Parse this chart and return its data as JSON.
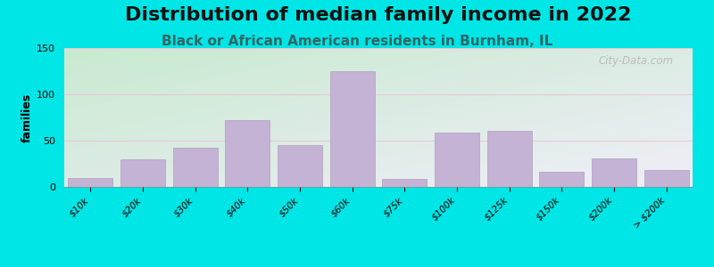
{
  "title": "Distribution of median family income in 2022",
  "subtitle": "Black or African American residents in Burnham, IL",
  "ylabel": "families",
  "categories": [
    "$10k",
    "$20k",
    "$30k",
    "$40k",
    "$50k",
    "$60k",
    "$75k",
    "$100k",
    "$125k",
    "$150k",
    "$200k",
    "> $200k"
  ],
  "values": [
    10,
    30,
    42,
    72,
    45,
    125,
    9,
    59,
    61,
    16,
    31,
    18
  ],
  "bar_color": "#c4b3d4",
  "bar_edge_color": "#b0a0c0",
  "background_outer": "#00e5e5",
  "bg_top_left": "#c8ead0",
  "bg_bottom_right": "#f0eef8",
  "grid_color": "#e8c8d8",
  "ylim": [
    0,
    150
  ],
  "yticks": [
    0,
    50,
    100,
    150
  ],
  "title_fontsize": 16,
  "subtitle_fontsize": 11,
  "ylabel_fontsize": 9,
  "watermark": "City-Data.com"
}
